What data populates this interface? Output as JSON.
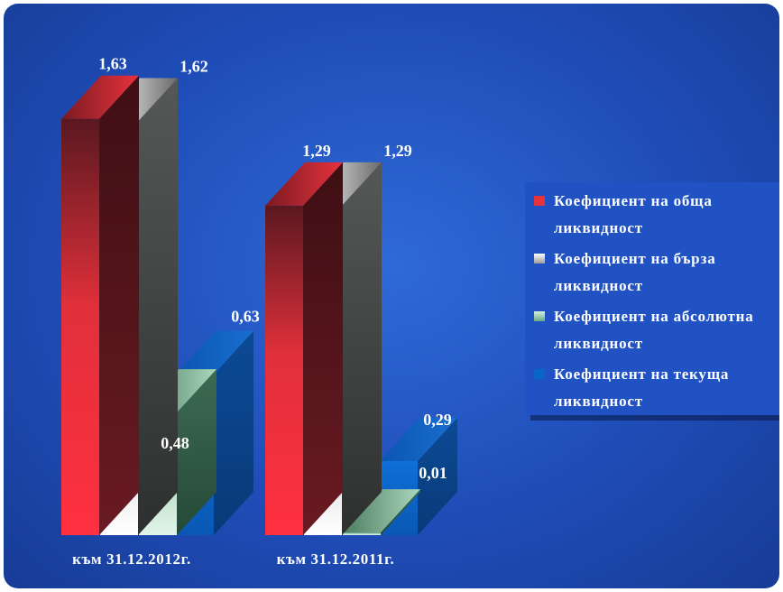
{
  "chart_data": {
    "type": "bar",
    "categories": [
      "към 31.12.2012г.",
      "към 31.12.2011г."
    ],
    "series": [
      {
        "name": "Коефициент на обща ликвидност",
        "values": [
          1.63,
          1.29
        ],
        "labels": [
          "1,63",
          "1,29"
        ]
      },
      {
        "name": "Коефициент на бърза ликвидност",
        "values": [
          1.62,
          1.29
        ],
        "labels": [
          "1,62",
          "1,29"
        ]
      },
      {
        "name": "Коефициент на абсолютна ликвидност",
        "values": [
          0.48,
          0.01
        ],
        "labels": [
          "0,48",
          "0,01"
        ]
      },
      {
        "name": "Коефициент на текуща ликвидност",
        "values": [
          0.63,
          0.29
        ],
        "labels": [
          "0,63",
          "0,29"
        ]
      }
    ],
    "title": "",
    "xlabel": "",
    "ylabel": "",
    "ylim": [
      0,
      1.8
    ],
    "style": "3d",
    "grid": false,
    "legend_position": "right"
  },
  "legend": {
    "items": [
      {
        "line1": "Коефициент на обща",
        "line2": "ликвидност",
        "swatch": "#e8323c"
      },
      {
        "line1": "Коефициент на бърза",
        "line2": "ликвидност",
        "swatch": "#d8d8d8"
      },
      {
        "line1": "Коефициент на абсолютна",
        "line2": "ликвидност",
        "swatch": "#8ac5a4"
      },
      {
        "line1": "Коефициент на текуща",
        "line2": "ликвидност",
        "swatch": "#0b64c8"
      }
    ]
  },
  "colors": {
    "background": "#1f4db8",
    "red": "#e8323c",
    "red_dark": "#5a1820",
    "gray_dark": "#3a3c3c",
    "gray_light": "#ffffff",
    "green": "#9ad2b0",
    "blue": "#0b64c8",
    "text": "#ffffff"
  }
}
